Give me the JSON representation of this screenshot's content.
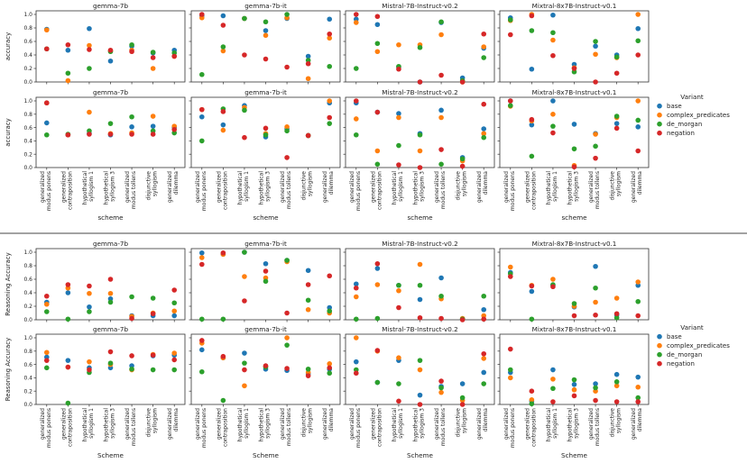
{
  "chart_data": {
    "type": "scatter",
    "categories": [
      "generalized modus ponens",
      "generalized contraposition",
      "hypothetical syllogism 1",
      "hypothetical syllogism 3",
      "generalized modus tollens",
      "disjunctive syllogism",
      "generalized dilemma"
    ],
    "category_lines": [
      [
        "generalized",
        "modus ponens"
      ],
      [
        "generalized",
        "contraposition"
      ],
      [
        "hypothetical",
        "syllogism 1"
      ],
      [
        "hypothetical",
        "syllogism 3"
      ],
      [
        "generalized",
        "modus tollens"
      ],
      [
        "disjunctive",
        "syllogism"
      ],
      [
        "generalized",
        "dilemma"
      ]
    ],
    "legend": {
      "title": "Variant",
      "entries": [
        {
          "name": "base",
          "color": "#1f77b4"
        },
        {
          "name": "complex_predicates",
          "color": "#ff7f0e"
        },
        {
          "name": "de_morgan",
          "color": "#2ca02c"
        },
        {
          "name": "negation",
          "color": "#d62728"
        }
      ]
    },
    "ylim": [
      0,
      1.0
    ],
    "yticks": [
      "0.0",
      "0.2",
      "0.4",
      "0.6",
      "0.8",
      "1.0"
    ],
    "figures": [
      {
        "xlabel": "scheme",
        "ylabel": "accuracy",
        "panels": [
          {
            "title": "gemma-7b",
            "series": {
              "base": [
                0.78,
                0.47,
                0.79,
                0.31,
                0.53,
                0.43,
                0.47
              ],
              "complex_predicates": [
                0.77,
                0.02,
                0.54,
                0.46,
                0.47,
                0.2,
                0.38
              ],
              "de_morgan": [
                0.49,
                0.13,
                0.2,
                0.45,
                0.55,
                0.44,
                0.43
              ],
              "negation": [
                0.49,
                0.55,
                0.48,
                0.47,
                0.45,
                0.36,
                0.38
              ]
            }
          },
          {
            "title": "gemma-7b-it",
            "series": {
              "base": [
                0.98,
                0.98,
                0.94,
                0.76,
                0.94,
                0.38,
                0.93
              ],
              "complex_predicates": [
                0.95,
                0.46,
                0.94,
                0.69,
                0.95,
                0.05,
                0.65
              ],
              "de_morgan": [
                0.11,
                0.52,
                0.94,
                0.89,
                1.0,
                0.32,
                0.23
              ],
              "negation": [
                1.0,
                0.84,
                0.4,
                0.34,
                0.22,
                0.27,
                0.71
              ]
            }
          },
          {
            "title": "Mistral-7B-Instruct-v0.2",
            "series": {
              "base": [
                0.93,
                0.85,
                0.22,
                0.0,
                0.88,
                0.06,
                0.5
              ],
              "complex_predicates": [
                0.88,
                0.45,
                0.55,
                0.55,
                0.7,
                0.0,
                0.52
              ],
              "de_morgan": [
                0.2,
                0.57,
                0.23,
                0.51,
                0.89,
                0.02,
                0.36
              ],
              "negation": [
                1.0,
                0.97,
                0.19,
                0.0,
                0.1,
                0.0,
                0.71
              ]
            }
          },
          {
            "title": "Mixtral-8x7B-Instruct-v0.1",
            "series": {
              "base": [
                0.95,
                0.19,
                0.99,
                0.26,
                0.53,
                0.4,
                0.79
              ],
              "complex_predicates": [
                0.91,
                1.0,
                0.62,
                0.21,
                0.41,
                0.36,
                1.0
              ],
              "de_morgan": [
                0.92,
                0.76,
                0.73,
                0.15,
                0.6,
                0.37,
                0.61
              ],
              "negation": [
                0.7,
                0.98,
                0.39,
                0.2,
                0.0,
                0.13,
                0.4
              ]
            }
          },
          {
            "title": "gemma-7b",
            "series": {
              "base": [
                0.67,
                0.49,
                0.51,
                0.49,
                0.61,
                0.62,
                0.6
              ],
              "complex_predicates": [
                0.97,
                0.49,
                0.83,
                0.51,
                0.52,
                0.77,
                0.62
              ],
              "de_morgan": [
                0.49,
                0.5,
                0.55,
                0.66,
                0.76,
                0.55,
                0.52
              ],
              "negation": [
                0.97,
                0.49,
                0.5,
                0.5,
                0.5,
                0.5,
                0.57
              ]
            }
          },
          {
            "title": "gemma-7b-it",
            "series": {
              "base": [
                0.76,
                0.64,
                0.93,
                0.46,
                0.58,
                0.48,
                0.97
              ],
              "complex_predicates": [
                0.87,
                0.56,
                0.9,
                0.51,
                0.61,
                0.48,
                1.0
              ],
              "de_morgan": [
                0.4,
                0.88,
                0.86,
                0.49,
                0.55,
                0.48,
                0.66
              ],
              "negation": [
                0.87,
                0.84,
                0.45,
                0.59,
                0.15,
                0.48,
                0.75
              ]
            }
          },
          {
            "title": "Mistral-7B-Instruct-v0.2",
            "series": {
              "base": [
                0.97,
                0.83,
                0.81,
                0.51,
                0.86,
                0.15,
                0.58
              ],
              "complex_predicates": [
                0.73,
                0.25,
                0.75,
                0.25,
                0.75,
                0.1,
                0.51
              ],
              "de_morgan": [
                0.49,
                0.05,
                0.33,
                0.49,
                0.05,
                0.13,
                0.45
              ],
              "negation": [
                1.0,
                0.83,
                0.04,
                0.0,
                0.27,
                0.02,
                0.95
              ]
            }
          },
          {
            "title": "Mixtral-8x7B-Instruct-v0.1",
            "series": {
              "base": [
                1.0,
                0.64,
                1.0,
                0.65,
                0.51,
                0.66,
                0.61
              ],
              "complex_predicates": [
                0.92,
                0.7,
                0.8,
                0.03,
                0.5,
                0.75,
                1.0
              ],
              "de_morgan": [
                0.93,
                0.17,
                0.62,
                0.28,
                0.32,
                0.77,
                0.71
              ],
              "negation": [
                1.0,
                0.72,
                0.52,
                0.01,
                0.14,
                0.59,
                0.25
              ]
            }
          }
        ]
      },
      {
        "xlabel": "Scheme",
        "ylabel": "Reasoning Accuracy",
        "panels": [
          {
            "title": "gemma-7b",
            "series": {
              "base": [
                0.26,
                0.4,
                0.19,
                0.31,
                0.06,
                0.06,
                0.06
              ],
              "complex_predicates": [
                0.23,
                0.47,
                0.39,
                0.39,
                0.05,
                0.1,
                0.13
              ],
              "de_morgan": [
                0.12,
                0.01,
                0.12,
                0.26,
                0.34,
                0.32,
                0.25
              ],
              "negation": [
                0.35,
                0.52,
                0.5,
                0.6,
                0.02,
                0.09,
                0.44
              ]
            }
          },
          {
            "title": "gemma-7b-it",
            "series": {
              "base": [
                0.99,
                0.97,
                1.0,
                0.83,
                0.88,
                0.73,
                0.18
              ],
              "complex_predicates": [
                0.92,
                0.97,
                0.64,
                0.62,
                0.86,
                0.15,
                0.1
              ],
              "de_morgan": [
                0.01,
                0.01,
                1.0,
                0.57,
                0.88,
                0.29,
                0.13
              ],
              "negation": [
                0.82,
                0.99,
                0.28,
                0.72,
                0.1,
                0.52,
                0.65
              ]
            }
          },
          {
            "title": "Mistral-7B-Instruct-v0.2",
            "series": {
              "base": [
                0.53,
                0.76,
                0.51,
                0.3,
                0.62,
                0.01,
                0.15
              ],
              "complex_predicates": [
                0.34,
                0.52,
                0.43,
                0.82,
                0.31,
                0.02,
                0.06
              ],
              "de_morgan": [
                0.01,
                0.02,
                0.51,
                0.51,
                0.35,
                0.01,
                0.35
              ],
              "negation": [
                0.47,
                0.83,
                0.18,
                0.03,
                0.02,
                0.0,
                0.01
              ]
            }
          },
          {
            "title": "Mixtral-8x7B-Instruct-v0.1",
            "series": {
              "base": [
                0.7,
                0.42,
                0.51,
                0.19,
                0.79,
                0.07,
                0.51
              ],
              "complex_predicates": [
                0.78,
                0.51,
                0.6,
                0.2,
                0.26,
                0.32,
                0.56
              ],
              "de_morgan": [
                0.68,
                0.01,
                0.52,
                0.24,
                0.47,
                0.03,
                0.27
              ],
              "negation": [
                0.64,
                0.5,
                0.49,
                0.06,
                0.07,
                0.09,
                0.06
              ]
            }
          },
          {
            "title": "gemma-7b",
            "series": {
              "base": [
                0.71,
                0.66,
                0.55,
                0.55,
                0.58,
                0.73,
                0.74
              ],
              "complex_predicates": [
                0.78,
                0.56,
                0.64,
                0.6,
                0.52,
                0.75,
                0.77
              ],
              "de_morgan": [
                0.55,
                0.02,
                0.48,
                0.62,
                0.53,
                0.52,
                0.52
              ],
              "negation": [
                0.66,
                0.56,
                0.52,
                0.79,
                0.73,
                0.74,
                0.67
              ]
            }
          },
          {
            "title": "gemma-7b-it",
            "series": {
              "base": [
                0.82,
                0.7,
                0.77,
                0.53,
                0.51,
                0.46,
                0.53
              ],
              "complex_predicates": [
                0.92,
                0.7,
                0.28,
                0.57,
                1.0,
                0.48,
                0.61
              ],
              "de_morgan": [
                0.49,
                0.06,
                0.62,
                0.56,
                0.89,
                0.53,
                0.47
              ],
              "negation": [
                0.96,
                0.72,
                0.52,
                0.58,
                0.54,
                0.43,
                0.55
              ]
            }
          },
          {
            "title": "Mistral-7B-Instruct-v0.2",
            "series": {
              "base": [
                0.64,
                0.33,
                0.66,
                0.14,
                0.27,
                0.31,
                0.48
              ],
              "complex_predicates": [
                1.0,
                0.8,
                0.7,
                0.52,
                0.18,
                0.06,
                0.69
              ],
              "de_morgan": [
                0.52,
                0.33,
                0.31,
                0.66,
                0.25,
                0.1,
                0.31
              ],
              "negation": [
                0.47,
                0.81,
                0.05,
                0.0,
                0.35,
                0.0,
                0.76
              ]
            }
          },
          {
            "title": "Mixtral-8x7B-Instruct-v0.1",
            "series": {
              "base": [
                0.48,
                0.05,
                0.52,
                0.3,
                0.31,
                0.45,
                0.41
              ],
              "complex_predicates": [
                0.4,
                0.07,
                0.38,
                0.22,
                0.2,
                0.28,
                0.26
              ],
              "de_morgan": [
                0.52,
                0.01,
                0.24,
                0.37,
                0.25,
                0.34,
                0.1
              ],
              "negation": [
                0.83,
                0.2,
                0.04,
                0.13,
                0.06,
                0.04,
                0.04
              ]
            }
          }
        ]
      }
    ]
  }
}
